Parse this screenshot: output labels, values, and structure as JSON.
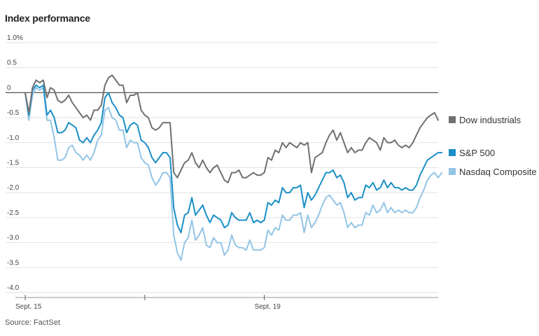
{
  "title": "Index performance",
  "source": "Source: FactSet",
  "chart_data": {
    "type": "line",
    "ylim": [
      -4.0,
      1.0
    ],
    "y_ticks": [
      "1.0%",
      "0.5",
      "0",
      "-0.5",
      "-1.0",
      "-1.5",
      "-2.0",
      "-2.5",
      "-3.0",
      "-3.5",
      "-4.0"
    ],
    "y_tick_values": [
      1.0,
      0.5,
      0,
      -0.5,
      -1.0,
      -1.5,
      -2.0,
      -2.5,
      -3.0,
      -3.5,
      -4.0
    ],
    "x_ticks": [
      {
        "label": "Sept. 15",
        "index": 0
      },
      {
        "label": "",
        "index": 33
      },
      {
        "label": "Sept. 19",
        "index": 66
      }
    ],
    "grid": true,
    "legend_placement": "right",
    "series": [
      {
        "name": "Dow industrials",
        "color": "#707070",
        "values": [
          0,
          -0.4,
          0.1,
          0.25,
          0.2,
          0.25,
          -0.1,
          0.1,
          0.05,
          -0.15,
          -0.2,
          -0.15,
          -0.05,
          -0.2,
          -0.3,
          -0.4,
          -0.5,
          -0.45,
          -0.55,
          -0.35,
          -0.35,
          -0.25,
          0.15,
          0.3,
          0.35,
          0.25,
          0.15,
          0.15,
          -0.2,
          -0.05,
          -0.05,
          0.0,
          -0.35,
          -0.45,
          -0.5,
          -0.7,
          -0.75,
          -0.7,
          -0.6,
          -0.6,
          -0.6,
          -1.6,
          -1.7,
          -1.55,
          -1.4,
          -1.35,
          -1.2,
          -1.4,
          -1.5,
          -1.35,
          -1.5,
          -1.6,
          -1.5,
          -1.45,
          -1.6,
          -1.75,
          -1.8,
          -1.6,
          -1.6,
          -1.55,
          -1.7,
          -1.7,
          -1.65,
          -1.6,
          -1.65,
          -1.65,
          -1.6,
          -1.3,
          -1.35,
          -1.15,
          -1.2,
          -1.0,
          -1.1,
          -1.0,
          -1.05,
          -1.1,
          -1.0,
          -1.05,
          -1.0,
          -1.6,
          -1.3,
          -1.25,
          -1.2,
          -1.0,
          -0.85,
          -0.75,
          -0.95,
          -0.8,
          -1.0,
          -1.2,
          -1.1,
          -1.2,
          -1.15,
          -1.15,
          -1.0,
          -0.9,
          -0.95,
          -1.0,
          -1.15,
          -0.9,
          -1.0,
          -1.0,
          -0.95,
          -1.05,
          -1.1,
          -1.05,
          -1.1,
          -1.0,
          -0.85,
          -0.7,
          -0.6,
          -0.5,
          -0.45,
          -0.4,
          -0.55
        ]
      },
      {
        "name": "S&P 500",
        "color": "#1a8fc7",
        "values": [
          0,
          -0.45,
          0.05,
          0.15,
          0.1,
          0.15,
          -0.45,
          -0.35,
          -0.5,
          -0.8,
          -0.8,
          -0.75,
          -0.6,
          -0.65,
          -0.7,
          -0.95,
          -1.0,
          -0.9,
          -1.0,
          -0.85,
          -0.75,
          -0.6,
          -0.1,
          0.0,
          -0.2,
          -0.3,
          -0.45,
          -0.5,
          -0.8,
          -0.65,
          -0.6,
          -0.65,
          -0.95,
          -1.0,
          -1.1,
          -1.3,
          -1.4,
          -1.3,
          -1.2,
          -1.2,
          -1.3,
          -2.3,
          -2.65,
          -2.8,
          -2.45,
          -2.4,
          -2.1,
          -2.45,
          -2.35,
          -2.25,
          -2.45,
          -2.6,
          -2.45,
          -2.5,
          -2.55,
          -2.7,
          -2.65,
          -2.4,
          -2.5,
          -2.55,
          -2.55,
          -2.55,
          -2.4,
          -2.6,
          -2.55,
          -2.6,
          -2.55,
          -2.2,
          -2.25,
          -2.15,
          -2.2,
          -1.9,
          -2.0,
          -2.0,
          -1.9,
          -1.9,
          -1.85,
          -2.3,
          -2.0,
          -2.15,
          -2.05,
          -1.9,
          -1.75,
          -1.6,
          -1.6,
          -1.55,
          -1.7,
          -1.65,
          -1.8,
          -2.1,
          -2.0,
          -2.15,
          -2.1,
          -2.1,
          -1.85,
          -1.9,
          -1.8,
          -1.95,
          -1.9,
          -1.75,
          -1.9,
          -1.8,
          -1.9,
          -1.9,
          -1.95,
          -1.9,
          -1.95,
          -1.95,
          -1.85,
          -1.65,
          -1.5,
          -1.35,
          -1.3,
          -1.25,
          -1.2,
          -1.2
        ]
      },
      {
        "name": "Nasdaq Composite",
        "color": "#93c5e6",
        "values": [
          0,
          -0.55,
          -0.05,
          0.1,
          0.05,
          0.1,
          -0.55,
          -0.55,
          -0.9,
          -1.35,
          -1.35,
          -1.3,
          -1.1,
          -1.05,
          -1.2,
          -1.25,
          -1.35,
          -1.25,
          -1.35,
          -1.2,
          -0.95,
          -0.85,
          -0.35,
          -0.3,
          -0.5,
          -0.55,
          -0.75,
          -0.75,
          -1.1,
          -0.95,
          -1.0,
          -1.0,
          -1.3,
          -1.4,
          -1.45,
          -1.7,
          -1.85,
          -1.75,
          -1.6,
          -1.6,
          -1.7,
          -2.85,
          -3.2,
          -3.35,
          -3.0,
          -2.9,
          -2.55,
          -2.95,
          -2.85,
          -2.7,
          -3.05,
          -3.1,
          -2.9,
          -3.0,
          -3.0,
          -3.25,
          -3.15,
          -2.85,
          -3.05,
          -3.1,
          -3.1,
          -3.15,
          -2.95,
          -3.15,
          -3.15,
          -3.15,
          -3.1,
          -2.75,
          -2.85,
          -2.7,
          -2.75,
          -2.45,
          -2.55,
          -2.55,
          -2.45,
          -2.45,
          -2.4,
          -2.8,
          -2.45,
          -2.7,
          -2.6,
          -2.45,
          -2.25,
          -2.1,
          -2.05,
          -2.15,
          -2.25,
          -2.2,
          -2.4,
          -2.7,
          -2.6,
          -2.7,
          -2.65,
          -2.65,
          -2.4,
          -2.45,
          -2.25,
          -2.4,
          -2.35,
          -2.2,
          -2.4,
          -2.3,
          -2.4,
          -2.35,
          -2.4,
          -2.35,
          -2.4,
          -2.4,
          -2.3,
          -2.1,
          -1.95,
          -1.75,
          -1.65,
          -1.6,
          -1.7,
          -1.6
        ]
      }
    ]
  }
}
